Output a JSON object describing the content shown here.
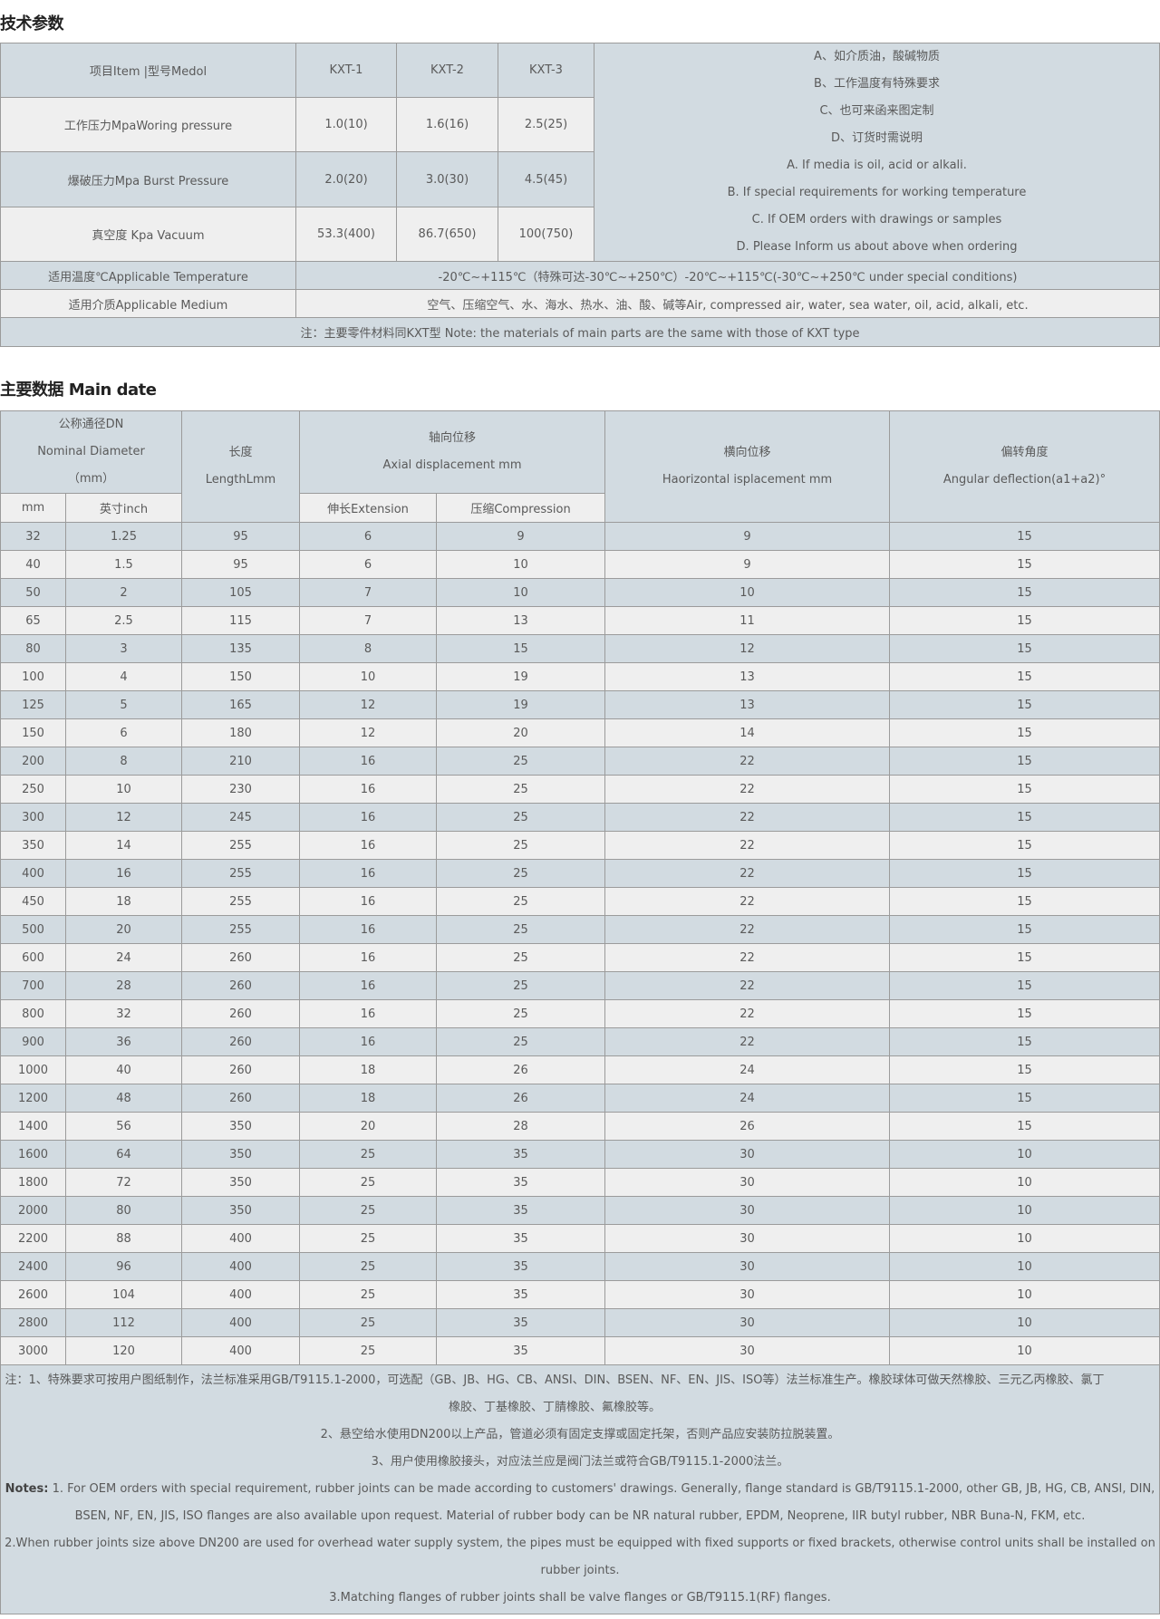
{
  "section1": {
    "title": "技术参数",
    "header": {
      "item": "项目Item |型号Medol",
      "models": [
        "KXT-1",
        "KXT-2",
        "KXT-3"
      ]
    },
    "rows": [
      {
        "label": "工作压力MpaWoring pressure",
        "values": [
          "1.0(10)",
          "1.6(16)",
          "2.5(25)"
        ]
      },
      {
        "label": "爆破压力Mpa Burst Pressure",
        "values": [
          "2.0(20)",
          "3.0(30)",
          "4.5(45)"
        ]
      },
      {
        "label": "真空度 Kpa Vacuum",
        "values": [
          "53.3(400)",
          "86.7(650)",
          "100(750)"
        ]
      }
    ],
    "remarks": [
      "A、如介质油，酸碱物质",
      "B、工作温度有特殊要求",
      "C、也可来函来图定制",
      "D、订货时需说明",
      "A. If media is oil, acid or alkali.",
      "B. If special requirements for working temperature",
      "C. If OEM orders with drawings or samples",
      "D. Please Inform us about above when ordering"
    ],
    "temperature": {
      "label": "适用温度℃Applicable Temperature",
      "value": "-20℃~+115℃（特殊可达-30℃~+250℃）-20℃~+115℃(-30℃~+250℃ under special conditions)"
    },
    "medium": {
      "label": "适用介质Applicable Medium",
      "value": "空气、压缩空气、水、海水、热水、油、酸、碱等Air, compressed air, water, sea water, oil, acid, alkali, etc."
    },
    "note": "注：主要零件材料同KXT型 Note: the materials of main parts are the same with those of KXT type"
  },
  "section2": {
    "title": "主要数据 Main date",
    "header": {
      "dn": [
        "公称通径DN",
        "Nominal Diameter",
        "（mm）"
      ],
      "length": [
        "长度",
        "LengthLmm"
      ],
      "axial": [
        "轴向位移",
        "Axial displacement mm"
      ],
      "horizontal": [
        "横向位移",
        "Haorizontal isplacement mm"
      ],
      "angular": [
        "偏转角度",
        "Angular deflection(a1+a2)°"
      ],
      "mm": "mm",
      "inch": "英寸inch",
      "extension": "伸长Extension",
      "compression": "压缩Compression"
    },
    "rows": [
      [
        "32",
        "1.25",
        "95",
        "6",
        "9",
        "9",
        "15"
      ],
      [
        "40",
        "1.5",
        "95",
        "6",
        "10",
        "9",
        "15"
      ],
      [
        "50",
        "2",
        "105",
        "7",
        "10",
        "10",
        "15"
      ],
      [
        "65",
        "2.5",
        "115",
        "7",
        "13",
        "11",
        "15"
      ],
      [
        "80",
        "3",
        "135",
        "8",
        "15",
        "12",
        "15"
      ],
      [
        "100",
        "4",
        "150",
        "10",
        "19",
        "13",
        "15"
      ],
      [
        "125",
        "5",
        "165",
        "12",
        "19",
        "13",
        "15"
      ],
      [
        "150",
        "6",
        "180",
        "12",
        "20",
        "14",
        "15"
      ],
      [
        "200",
        "8",
        "210",
        "16",
        "25",
        "22",
        "15"
      ],
      [
        "250",
        "10",
        "230",
        "16",
        "25",
        "22",
        "15"
      ],
      [
        "300",
        "12",
        "245",
        "16",
        "25",
        "22",
        "15"
      ],
      [
        "350",
        "14",
        "255",
        "16",
        "25",
        "22",
        "15"
      ],
      [
        "400",
        "16",
        "255",
        "16",
        "25",
        "22",
        "15"
      ],
      [
        "450",
        "18",
        "255",
        "16",
        "25",
        "22",
        "15"
      ],
      [
        "500",
        "20",
        "255",
        "16",
        "25",
        "22",
        "15"
      ],
      [
        "600",
        "24",
        "260",
        "16",
        "25",
        "22",
        "15"
      ],
      [
        "700",
        "28",
        "260",
        "16",
        "25",
        "22",
        "15"
      ],
      [
        "800",
        "32",
        "260",
        "16",
        "25",
        "22",
        "15"
      ],
      [
        "900",
        "36",
        "260",
        "16",
        "25",
        "22",
        "15"
      ],
      [
        "1000",
        "40",
        "260",
        "18",
        "26",
        "24",
        "15"
      ],
      [
        "1200",
        "48",
        "260",
        "18",
        "26",
        "24",
        "15"
      ],
      [
        "1400",
        "56",
        "350",
        "20",
        "28",
        "26",
        "15"
      ],
      [
        "1600",
        "64",
        "350",
        "25",
        "35",
        "30",
        "10"
      ],
      [
        "1800",
        "72",
        "350",
        "25",
        "35",
        "30",
        "10"
      ],
      [
        "2000",
        "80",
        "350",
        "25",
        "35",
        "30",
        "10"
      ],
      [
        "2200",
        "88",
        "400",
        "25",
        "35",
        "30",
        "10"
      ],
      [
        "2400",
        "96",
        "400",
        "25",
        "35",
        "30",
        "10"
      ],
      [
        "2600",
        "104",
        "400",
        "25",
        "35",
        "30",
        "10"
      ],
      [
        "2800",
        "112",
        "400",
        "25",
        "35",
        "30",
        "10"
      ],
      [
        "3000",
        "120",
        "400",
        "25",
        "35",
        "30",
        "10"
      ]
    ],
    "notes": {
      "cn": [
        "注：1、特殊要求可按用户图纸制作，法兰标准采用GB/T9115.1-2000，可选配（GB、JB、HG、CB、ANSI、DIN、BSEN、NF、EN、JIS、ISO等）法兰标准生产。橡胶球体可做天然橡胶、三元乙丙橡胶、氯丁橡胶、丁基橡胶、丁腈橡胶、氟橡胶等。",
        "2、悬空给水使用DN200以上产品，管道必须有固定支撑或固定托架，否则产品应安装防拉脱装置。",
        "3、用户使用橡胶接头，对应法兰应是阀门法兰或符合GB/T9115.1-2000法兰。"
      ],
      "en_label": "Notes:",
      "en": [
        "1. For OEM orders with special requirement, rubber joints can be made according to customers' drawings. Generally, flange standard is GB/T9115.1-2000, other GB, JB, HG, CB, ANSI, DIN, BSEN, NF, EN, JIS, ISO flanges are also available upon request. Material of rubber body can be NR natural rubber, EPDM, Neoprene, IIR butyl rubber, NBR Buna-N, FKM, etc.",
        "2.When rubber joints size above DN200 are used for overhead water supply system, the pipes must be equipped with fixed supports or fixed brackets, otherwise control units shall be installed on rubber joints.",
        "3.Matching flanges of rubber joints shall be valve flanges or GB/T9115.1(RF) flanges."
      ]
    }
  },
  "colors": {
    "row_blue": "#d2dbe1",
    "row_gray": "#efefef",
    "border": "#9b9b9b",
    "text": "#5a5a5a"
  }
}
